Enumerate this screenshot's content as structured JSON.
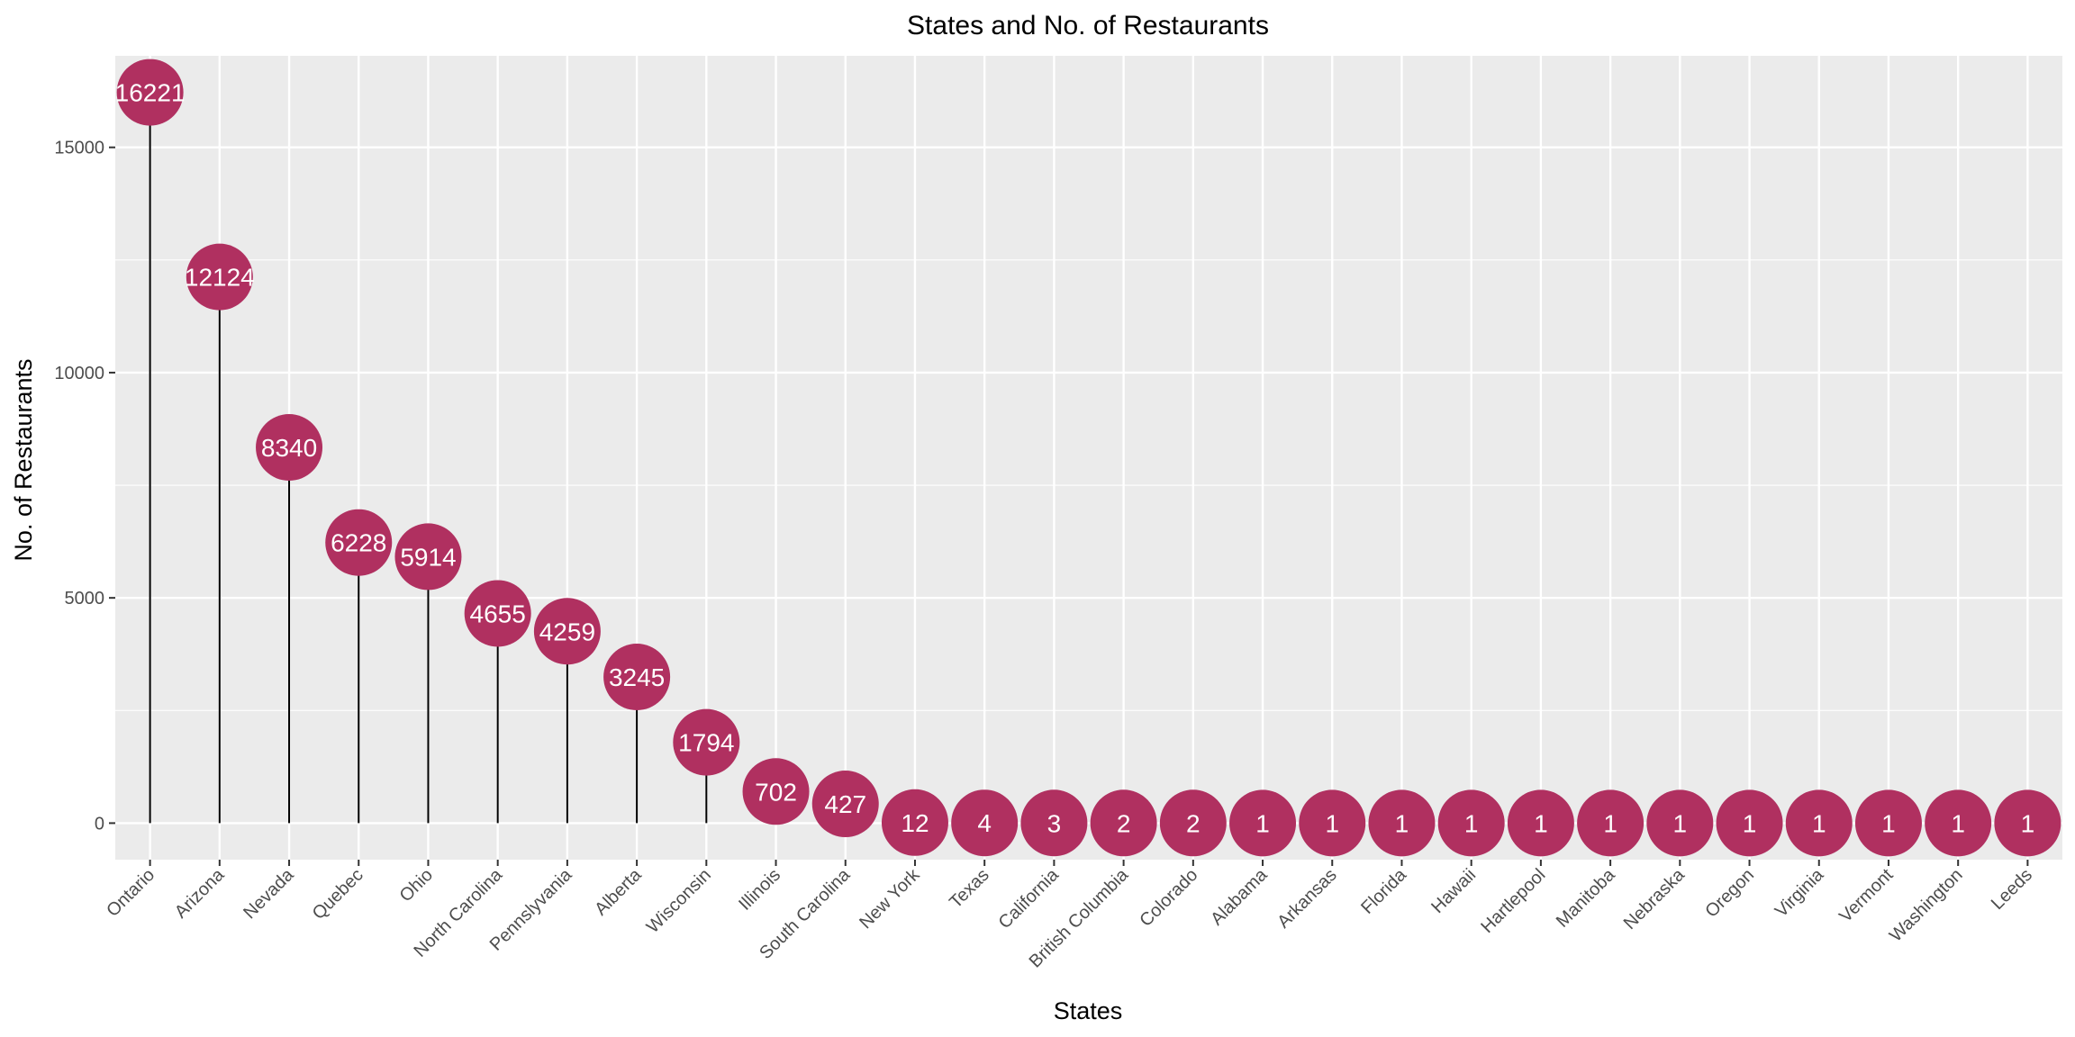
{
  "chart_data": {
    "type": "lollipop",
    "title": "States and No. of Restaurants",
    "xlabel": "States",
    "ylabel": "No. of Restaurants",
    "categories": [
      "Ontario",
      "Arizona",
      "Nevada",
      "Quebec",
      "Ohio",
      "North Carolina",
      "Pennslyvania",
      "Alberta",
      "Wisconsin",
      "Illinois",
      "South Carolina",
      "New York",
      "Texas",
      "California",
      "British Columbia",
      "Colorado",
      "Alabama",
      "Arkansas",
      "Florida",
      "Hawaii",
      "Hartlepool",
      "Manitoba",
      "Nebraska",
      "Oregon",
      "Virginia",
      "Vermont",
      "Washington",
      "Leeds"
    ],
    "values": [
      16221,
      12124,
      8340,
      6228,
      5914,
      4655,
      4259,
      3245,
      1794,
      702,
      427,
      12,
      4,
      3,
      2,
      2,
      1,
      1,
      1,
      1,
      1,
      1,
      1,
      1,
      1,
      1,
      1,
      1
    ],
    "y_ticks": [
      0,
      5000,
      10000,
      15000
    ],
    "ylim": [
      -811,
      17032
    ],
    "grid": true,
    "point_color": "#b03060",
    "stem_color": "#000000",
    "panel_color": "#ebebeb",
    "grid_color": "#ffffff"
  }
}
